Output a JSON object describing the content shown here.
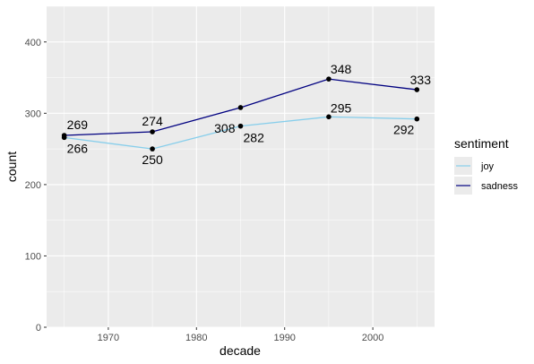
{
  "chart_data": {
    "type": "line",
    "xlabel": "decade",
    "ylabel": "count",
    "xlim": [
      1963,
      2007
    ],
    "ylim": [
      0,
      450
    ],
    "x_ticks": [
      1970,
      1980,
      1990,
      2000
    ],
    "y_ticks": [
      0,
      100,
      200,
      300,
      400
    ],
    "x": [
      1965,
      1975,
      1985,
      1995,
      2005
    ],
    "grid": true,
    "legend": {
      "title": "sentiment",
      "position": "right"
    },
    "series": [
      {
        "name": "joy",
        "color": "#87CEEB",
        "values": [
          266,
          250,
          282,
          295,
          292
        ]
      },
      {
        "name": "sadness",
        "color": "#000080",
        "values": [
          269,
          274,
          308,
          348,
          333
        ]
      }
    ]
  }
}
